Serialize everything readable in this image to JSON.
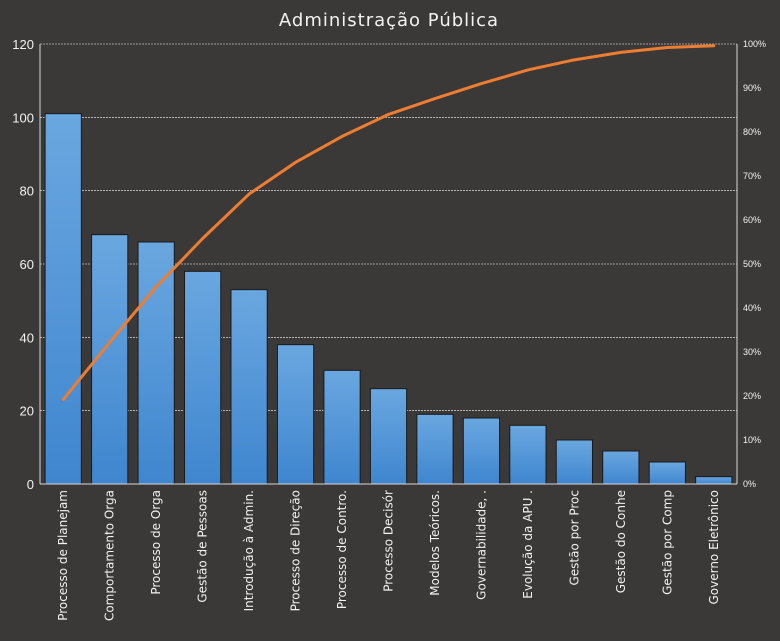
{
  "chart_data": {
    "type": "bar",
    "title": "Administração Pública",
    "categories": [
      "Processo de Planejam",
      "Comportamento  Orga",
      "Processo de Orga",
      "Gestão de Pessoas",
      "Introdução  à Admin.",
      "Processo de Direção",
      "Processo de Contro.",
      "Processo Decisór",
      "Modelos Teóricos.",
      "Governabilidade, .",
      "Evolução da APU .",
      "Gestão por Proc",
      "Gestão do  Conhe",
      "Gestão por Comp",
      "Governo Eletrônico"
    ],
    "series": [
      {
        "type": "bar",
        "values": [
          101,
          68,
          66,
          58,
          53,
          38,
          31,
          26,
          19,
          18,
          16,
          12,
          9,
          6,
          2
        ],
        "color": "#5b9bd5"
      },
      {
        "type": "line",
        "axis": "right",
        "values": [
          19.2,
          32.2,
          44.8,
          55.8,
          65.9,
          73.1,
          79.0,
          84.0,
          87.6,
          91.0,
          94.1,
          96.4,
          98.1,
          99.2,
          99.6
        ],
        "color": "#ed7d31"
      }
    ],
    "ylim": [
      0,
      120
    ],
    "yticks": [
      "0",
      "20",
      "40",
      "60",
      "80",
      "100",
      "120"
    ],
    "y2lim": [
      0,
      100
    ],
    "y2ticks": [
      "0%",
      "10%",
      "20%",
      "30%",
      "40%",
      "50%",
      "60%",
      "70%",
      "80%",
      "90%",
      "100%"
    ],
    "grid": true,
    "legend": "none"
  }
}
